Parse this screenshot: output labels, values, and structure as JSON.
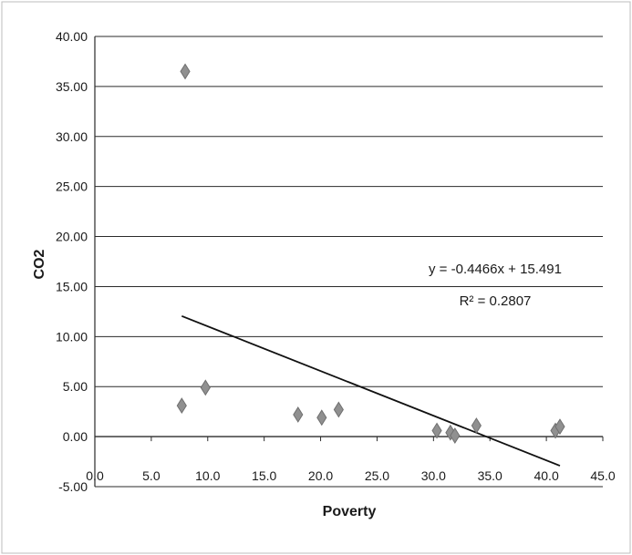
{
  "chart_data": {
    "type": "scatter",
    "xlabel": "Poverty",
    "ylabel": "CO2",
    "xlim": [
      0,
      45
    ],
    "ylim": [
      -5,
      40
    ],
    "x_ticks": [
      "0.0",
      "5.0",
      "10.0",
      "15.0",
      "20.0",
      "25.0",
      "30.0",
      "35.0",
      "40.0",
      "45.0"
    ],
    "y_ticks": [
      "-5.00",
      "0.00",
      "5.00",
      "10.00",
      "15.00",
      "20.00",
      "25.00",
      "30.00",
      "35.00",
      "40.00"
    ],
    "grid": "horizontal",
    "marker": "diamond",
    "points": [
      {
        "x": 8.0,
        "y": 36.5
      },
      {
        "x": 7.7,
        "y": 3.1
      },
      {
        "x": 9.8,
        "y": 4.9
      },
      {
        "x": 18.0,
        "y": 2.2
      },
      {
        "x": 20.1,
        "y": 1.9
      },
      {
        "x": 21.6,
        "y": 2.7
      },
      {
        "x": 30.3,
        "y": 0.6
      },
      {
        "x": 31.5,
        "y": 0.4
      },
      {
        "x": 31.9,
        "y": 0.1
      },
      {
        "x": 33.8,
        "y": 1.1
      },
      {
        "x": 40.8,
        "y": 0.6
      },
      {
        "x": 41.2,
        "y": 1.0
      }
    ],
    "trendline": {
      "slope": -0.4466,
      "intercept": 15.491,
      "x_range": [
        7.7,
        41.2
      ],
      "equation": "y = -0.4466x + 15.491",
      "r_squared": "R² = 0.2807"
    }
  },
  "colors": {
    "points": "#909090",
    "trendline": "#111111",
    "grid": "#2a2a2a",
    "text": "#1a1a1a",
    "border": "#bdbdbd"
  }
}
